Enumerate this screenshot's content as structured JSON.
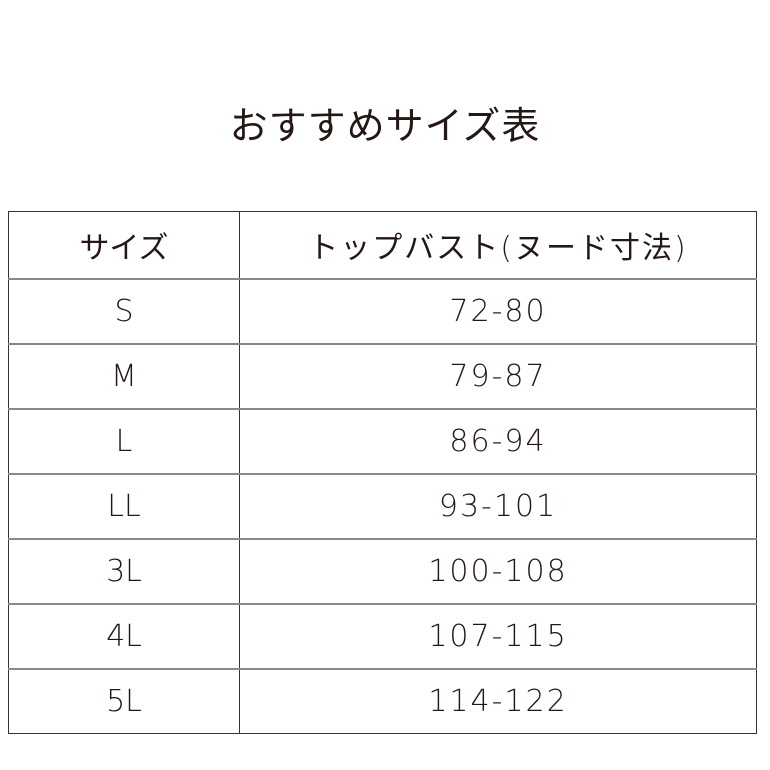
{
  "title": "おすすめサイズ表",
  "table": {
    "headers": [
      "サイズ",
      "トップバスト(ヌード寸法)"
    ],
    "rows": [
      [
        "S",
        "72-80"
      ],
      [
        "M",
        "79-87"
      ],
      [
        "L",
        "86-94"
      ],
      [
        "LL",
        "93-101"
      ],
      [
        "3L",
        "100-108"
      ],
      [
        "4L",
        "107-115"
      ],
      [
        "5L",
        "114-122"
      ]
    ]
  }
}
